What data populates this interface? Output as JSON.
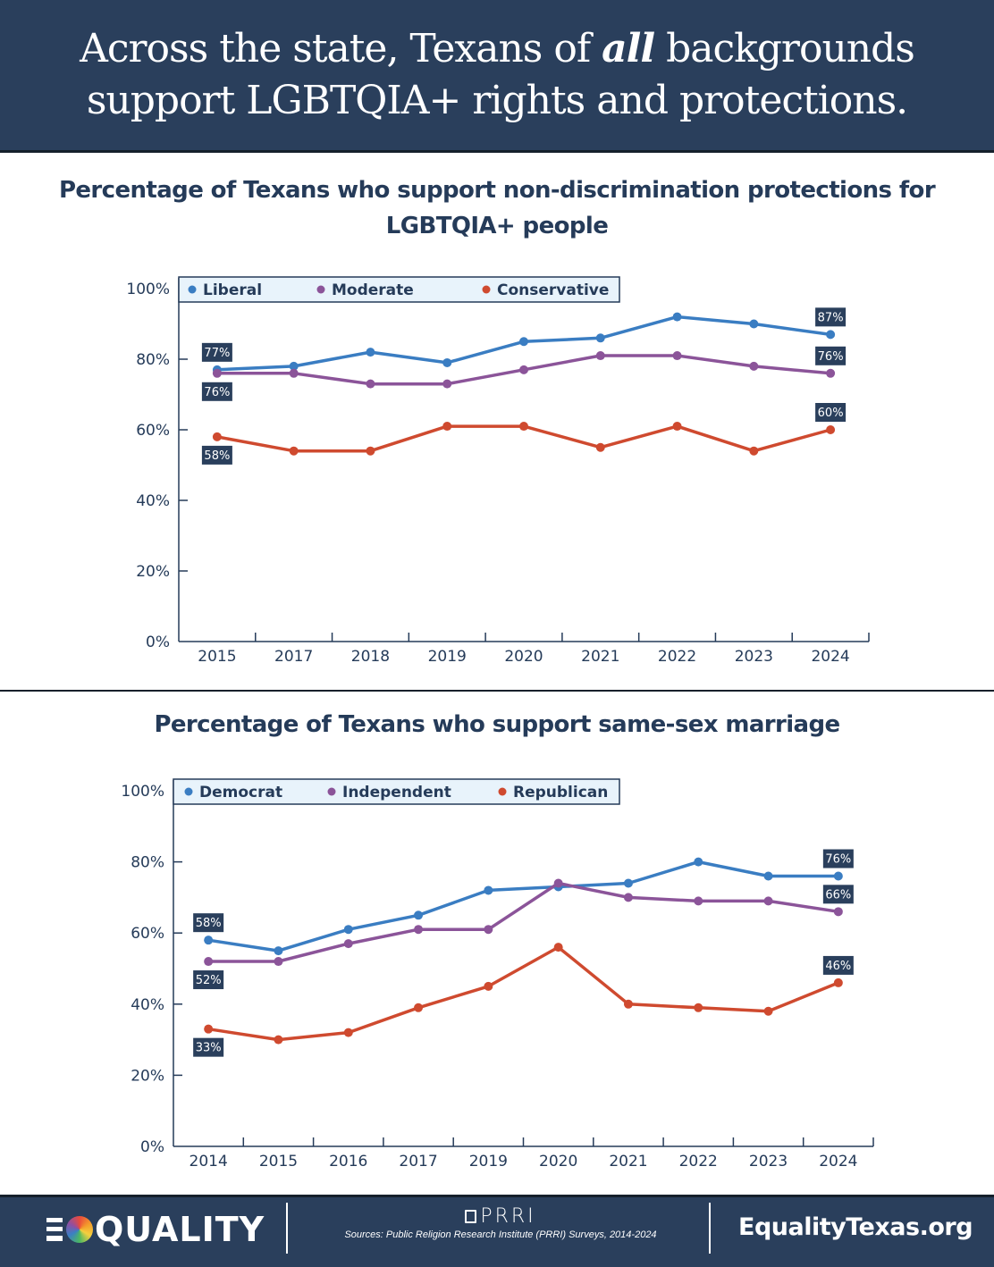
{
  "header": {
    "title_line1_pre": "Across the state, Texans of ",
    "title_line1_em": "all",
    "title_line1_post": " backgrounds",
    "title_line2": "support LGBTQIA+ rights and protections."
  },
  "colors": {
    "navy": "#2a3f5c",
    "text": "#253b59",
    "blue": "#3a7dc2",
    "purple": "#8b5499",
    "red": "#cf4a2f",
    "legend_bg": "#e8f3fb",
    "label_bg": "#2a3f5c"
  },
  "chart_data": [
    {
      "type": "line",
      "title": "Percentage of Texans who support non-discrimination protections for LGBTQIA+ people",
      "xlabel": "",
      "ylabel": "",
      "x": [
        "2015",
        "2017",
        "2018",
        "2019",
        "2020",
        "2021",
        "2022",
        "2023",
        "2024"
      ],
      "ylim": [
        0,
        100
      ],
      "yticks": [
        "0%",
        "20%",
        "40%",
        "60%",
        "80%",
        "100%"
      ],
      "grid": false,
      "legend": "top",
      "series": [
        {
          "name": "Liberal",
          "color": "#3a7dc2",
          "values": [
            77,
            78,
            82,
            79,
            85,
            86,
            92,
            90,
            87
          ],
          "labels": {
            "first": "77%",
            "last": "87%"
          },
          "label_first_pos": "above",
          "label_last_pos": "above"
        },
        {
          "name": "Moderate",
          "color": "#8b5499",
          "values": [
            76,
            76,
            73,
            73,
            77,
            81,
            81,
            78,
            76
          ],
          "labels": {
            "first": "76%",
            "last": "76%"
          },
          "label_first_pos": "below",
          "label_last_pos": "above"
        },
        {
          "name": "Conservative",
          "color": "#cf4a2f",
          "values": [
            58,
            54,
            54,
            61,
            61,
            55,
            61,
            54,
            60
          ],
          "labels": {
            "first": "58%",
            "last": "60%"
          },
          "label_first_pos": "below",
          "label_last_pos": "above"
        }
      ]
    },
    {
      "type": "line",
      "title": "Percentage of Texans who support same-sex marriage",
      "xlabel": "",
      "ylabel": "",
      "x": [
        "2014",
        "2015",
        "2016",
        "2017",
        "2019",
        "2020",
        "2021",
        "2022",
        "2023",
        "2024"
      ],
      "ylim": [
        0,
        100
      ],
      "yticks": [
        "0%",
        "20%",
        "40%",
        "60%",
        "80%",
        "100%"
      ],
      "grid": false,
      "legend": "top",
      "series": [
        {
          "name": "Democrat",
          "color": "#3a7dc2",
          "values": [
            58,
            55,
            61,
            65,
            72,
            73,
            74,
            80,
            76,
            76
          ],
          "labels": {
            "first": "58%",
            "last": "76%"
          },
          "label_first_pos": "above",
          "label_last_pos": "above"
        },
        {
          "name": "Independent",
          "color": "#8b5499",
          "values": [
            52,
            52,
            57,
            61,
            61,
            74,
            70,
            69,
            69,
            66
          ],
          "labels": {
            "first": "52%",
            "last": "66%"
          },
          "label_first_pos": "below",
          "label_last_pos": "above"
        },
        {
          "name": "Republican",
          "color": "#cf4a2f",
          "values": [
            33,
            30,
            32,
            39,
            45,
            56,
            40,
            39,
            38,
            46
          ],
          "labels": {
            "first": "33%",
            "last": "46%"
          },
          "label_first_pos": "below",
          "label_last_pos": "above"
        }
      ]
    }
  ],
  "footer": {
    "logo_text": "QUALITY",
    "prri_logo": "PRRI",
    "sources": "Sources: Public Religion Research Institute (PRRI) Surveys, 2014-2024",
    "website": "EqualityTexas.org"
  }
}
